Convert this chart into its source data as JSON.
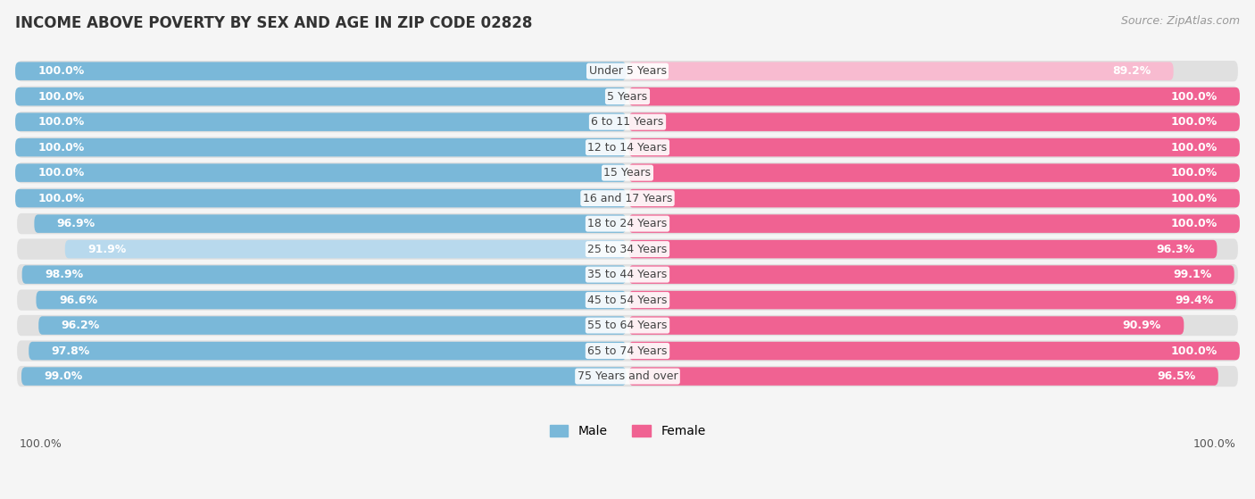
{
  "title": "INCOME ABOVE POVERTY BY SEX AND AGE IN ZIP CODE 02828",
  "source": "Source: ZipAtlas.com",
  "categories": [
    "Under 5 Years",
    "5 Years",
    "6 to 11 Years",
    "12 to 14 Years",
    "15 Years",
    "16 and 17 Years",
    "18 to 24 Years",
    "25 to 34 Years",
    "35 to 44 Years",
    "45 to 54 Years",
    "55 to 64 Years",
    "65 to 74 Years",
    "75 Years and over"
  ],
  "male_values": [
    100.0,
    100.0,
    100.0,
    100.0,
    100.0,
    100.0,
    96.9,
    91.9,
    98.9,
    96.6,
    96.2,
    97.8,
    99.0
  ],
  "female_values": [
    89.2,
    100.0,
    100.0,
    100.0,
    100.0,
    100.0,
    100.0,
    96.3,
    99.1,
    99.4,
    90.9,
    100.0,
    96.5
  ],
  "male_color": "#7ab8d9",
  "female_color": "#f06292",
  "male_light_color": "#b8d9ed",
  "female_light_color": "#f8bbd0",
  "male_label_color": "#ffffff",
  "female_label_color": "#ffffff",
  "background_color": "#f5f5f5",
  "row_bg_color": "#e0e0e0",
  "title_fontsize": 12,
  "source_fontsize": 9,
  "label_fontsize": 9,
  "category_fontsize": 9,
  "legend_male": "Male",
  "legend_female": "Female",
  "bottom_male_value": "100.0%",
  "bottom_female_value": "100.0%"
}
